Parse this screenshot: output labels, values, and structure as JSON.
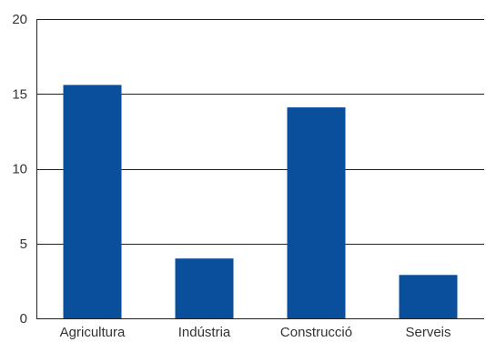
{
  "chart_data": {
    "type": "bar",
    "categories": [
      "Agricultura",
      "Indústria",
      "Construcció",
      "Serveis"
    ],
    "values": [
      15.6,
      4.0,
      14.1,
      2.9
    ],
    "title": "",
    "xlabel": "",
    "ylabel": "",
    "ylim": [
      0,
      20
    ],
    "yticks": [
      0,
      5,
      10,
      15,
      20
    ],
    "grid": "horizontal",
    "legend": "none",
    "bar_color": "#0a4f9c",
    "axis_color": "#222222"
  }
}
